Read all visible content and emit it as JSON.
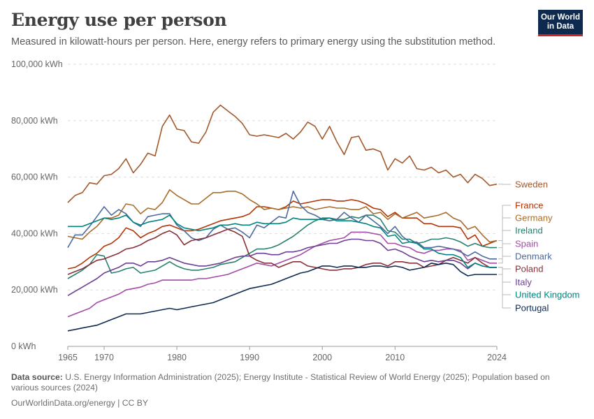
{
  "header": {
    "title": "Energy use per person",
    "subtitle": "Measured in kilowatt-hours per person. Here, energy refers to primary energy using the substitution method.",
    "logo_line1": "Our World",
    "logo_line2": "in Data"
  },
  "footer": {
    "source_label": "Data source:",
    "source_text": "U.S. Energy Information Administration (2025); Energy Institute - Statistical Review of World Energy (2025); Population based on various sources (2024)",
    "credit": "OurWorldinData.org/energy | CC BY"
  },
  "colors": {
    "grid": "#dddddd",
    "axis": "#999999",
    "tick_text": "#666666",
    "brand": "#0f2a4f",
    "brand_accent": "#ce261e"
  },
  "chart_data": {
    "type": "line",
    "ylim": [
      0,
      100000
    ],
    "xlim": [
      1965,
      2024
    ],
    "y_ticks": [
      0,
      20000,
      40000,
      60000,
      80000,
      100000
    ],
    "y_tick_labels": [
      "0 kWh",
      "20,000 kWh",
      "40,000 kWh",
      "60,000 kWh",
      "80,000 kWh",
      "100,000 kWh"
    ],
    "x_ticks": [
      1965,
      1970,
      1980,
      1990,
      2000,
      2010,
      2024
    ],
    "x_tick_labels": [
      "1965",
      "1970",
      "1980",
      "1990",
      "2000",
      "2010",
      "2024"
    ],
    "grid": "horizontal dashed",
    "legend": "right (line-end labels)",
    "x": [
      1965,
      1966,
      1967,
      1968,
      1969,
      1970,
      1971,
      1972,
      1973,
      1974,
      1975,
      1976,
      1977,
      1978,
      1979,
      1980,
      1981,
      1982,
      1983,
      1984,
      1985,
      1986,
      1987,
      1988,
      1989,
      1990,
      1991,
      1992,
      1993,
      1994,
      1995,
      1996,
      1997,
      1998,
      1999,
      2000,
      2001,
      2002,
      2003,
      2004,
      2005,
      2006,
      2007,
      2008,
      2009,
      2010,
      2011,
      2012,
      2013,
      2014,
      2015,
      2016,
      2017,
      2018,
      2019,
      2020,
      2021,
      2022,
      2023,
      2024
    ],
    "series": [
      {
        "name": "Sweden",
        "color": "#a2592b",
        "values": [
          51000,
          53500,
          54500,
          58000,
          57500,
          60500,
          61000,
          63000,
          66500,
          61500,
          64500,
          68500,
          67500,
          78000,
          82000,
          77000,
          76500,
          72500,
          72000,
          76000,
          83000,
          85500,
          83500,
          81500,
          79000,
          75000,
          74500,
          75000,
          74500,
          74000,
          75500,
          73500,
          76000,
          79500,
          78000,
          73500,
          78000,
          72500,
          68000,
          74000,
          74500,
          69500,
          70000,
          69000,
          62500,
          66500,
          65000,
          67500,
          63000,
          62500,
          63500,
          61500,
          62500,
          60000,
          61000,
          58000,
          61000,
          59500,
          57000,
          57500
        ]
      },
      {
        "name": "France",
        "color": "#b13507",
        "values": [
          27500,
          28000,
          29500,
          31500,
          33000,
          35500,
          36500,
          38500,
          42000,
          41000,
          38500,
          40000,
          41000,
          42500,
          43000,
          42000,
          41000,
          41000,
          41500,
          42500,
          43500,
          44500,
          45000,
          45500,
          46000,
          47000,
          49500,
          49500,
          49000,
          48500,
          49500,
          51500,
          50500,
          51000,
          51500,
          52000,
          52000,
          51500,
          51500,
          52000,
          51500,
          50500,
          49000,
          48500,
          46000,
          47500,
          45500,
          45500,
          45500,
          43500,
          43500,
          42500,
          42500,
          42500,
          42000,
          38000,
          39500,
          35500,
          36500,
          37500
        ]
      },
      {
        "name": "Germany",
        "color": "#a76d2b",
        "values": [
          39000,
          38500,
          38000,
          40500,
          42500,
          45500,
          45500,
          46500,
          50500,
          50000,
          47000,
          49000,
          48500,
          51000,
          55500,
          53500,
          52000,
          50500,
          50500,
          52500,
          54500,
          54500,
          55000,
          55000,
          54000,
          52000,
          50500,
          48500,
          49000,
          48500,
          49000,
          49500,
          49000,
          49500,
          48500,
          49000,
          49500,
          49000,
          49000,
          48500,
          48500,
          49500,
          47000,
          47500,
          45000,
          47000,
          45500,
          46500,
          47500,
          45500,
          46000,
          46500,
          47500,
          45500,
          44500,
          41500,
          42500,
          39500,
          37000,
          37500
        ]
      },
      {
        "name": "Ireland",
        "color": "#28806f",
        "values": [
          24000,
          25500,
          27000,
          29000,
          32500,
          32000,
          26000,
          26500,
          27500,
          28000,
          26000,
          26500,
          27000,
          28500,
          30000,
          28500,
          27500,
          27000,
          27000,
          27500,
          28000,
          29000,
          29500,
          30000,
          31500,
          33000,
          34500,
          34500,
          35000,
          36000,
          37500,
          39000,
          41000,
          43000,
          44500,
          45500,
          45500,
          45000,
          45000,
          46000,
          45500,
          46500,
          46500,
          45000,
          41000,
          40500,
          38000,
          38000,
          36500,
          37000,
          38000,
          38000,
          38500,
          38000,
          37000,
          35500,
          36500,
          35500,
          35000,
          35000
        ]
      },
      {
        "name": "Spain",
        "color": "#a14ca6",
        "values": [
          10500,
          11500,
          12500,
          13500,
          15500,
          16500,
          17500,
          18500,
          20000,
          20500,
          21000,
          22000,
          22500,
          23500,
          23500,
          23500,
          23500,
          23500,
          24000,
          24000,
          24500,
          25000,
          25500,
          26500,
          27500,
          28500,
          29500,
          29000,
          28500,
          29500,
          30500,
          31500,
          32500,
          34000,
          35500,
          36500,
          37500,
          38000,
          38500,
          40500,
          40500,
          40500,
          40000,
          39500,
          36500,
          36500,
          35500,
          35000,
          33500,
          33000,
          34000,
          34000,
          34500,
          34500,
          34000,
          30500,
          31500,
          30500,
          29500,
          29500
        ]
      },
      {
        "name": "Denmark",
        "color": "#4c6a9c",
        "values": [
          35000,
          39500,
          39500,
          42500,
          46000,
          49500,
          46500,
          48500,
          47000,
          44000,
          42500,
          46000,
          46500,
          47000,
          47000,
          43000,
          41000,
          38500,
          37500,
          38500,
          41500,
          43000,
          41500,
          42000,
          40500,
          38500,
          43000,
          42000,
          44000,
          46000,
          45500,
          55000,
          50000,
          47500,
          46500,
          45000,
          44500,
          45000,
          47500,
          45500,
          44000,
          46500,
          44500,
          42500,
          40000,
          42500,
          39000,
          37000,
          37000,
          35000,
          35000,
          35500,
          35000,
          34500,
          33500,
          32000,
          33500,
          32000,
          31000,
          31000
        ]
      },
      {
        "name": "Poland",
        "color": "#883039",
        "values": [
          25500,
          26500,
          27500,
          29000,
          30500,
          31000,
          32000,
          33000,
          34500,
          35000,
          36000,
          37500,
          38500,
          40000,
          41000,
          39500,
          36000,
          37500,
          38000,
          38500,
          39500,
          40500,
          41500,
          40500,
          39000,
          32000,
          30500,
          29500,
          29500,
          28000,
          29000,
          30000,
          30000,
          28500,
          28000,
          27500,
          27000,
          27000,
          27500,
          27500,
          28000,
          29000,
          29500,
          29500,
          28500,
          30000,
          30000,
          29500,
          29500,
          28000,
          28500,
          29000,
          30500,
          31500,
          30500,
          29500,
          31500,
          29500,
          28000,
          28000
        ]
      },
      {
        "name": "Italy",
        "color": "#6d3e91",
        "values": [
          18000,
          19500,
          21000,
          22500,
          24000,
          26000,
          27000,
          28000,
          29500,
          29500,
          28500,
          30000,
          30000,
          30500,
          31500,
          30500,
          29500,
          29000,
          28500,
          28500,
          29000,
          29500,
          30500,
          31500,
          32000,
          32000,
          33000,
          33000,
          32500,
          32500,
          33500,
          33500,
          34000,
          35000,
          35500,
          36000,
          36500,
          36500,
          37500,
          38000,
          38000,
          37500,
          37500,
          36500,
          34000,
          34500,
          33500,
          32000,
          31000,
          30000,
          30500,
          30000,
          30500,
          30500,
          29500,
          27500,
          29500,
          28500,
          28000,
          28000
        ]
      },
      {
        "name": "United Kingdom",
        "color": "#00847e",
        "values": [
          42500,
          42500,
          42500,
          43500,
          44500,
          45500,
          45000,
          45500,
          46500,
          44000,
          43000,
          44000,
          44500,
          45000,
          46500,
          43500,
          42000,
          41500,
          41000,
          41500,
          42000,
          43000,
          43000,
          43500,
          43000,
          43000,
          44000,
          43500,
          43500,
          43500,
          44000,
          45500,
          45000,
          45000,
          45000,
          45000,
          45500,
          44500,
          44500,
          44500,
          44000,
          43500,
          42500,
          42000,
          39000,
          39500,
          36500,
          37000,
          36500,
          34500,
          34500,
          33000,
          32500,
          32500,
          31500,
          28000,
          29500,
          28500,
          28000,
          28000
        ]
      },
      {
        "name": "Portugal",
        "color": "#0f2a4f",
        "values": [
          5500,
          6000,
          6500,
          7000,
          7500,
          8500,
          9500,
          10500,
          11500,
          11500,
          11500,
          12000,
          12500,
          13000,
          13500,
          13000,
          13500,
          14000,
          14500,
          15000,
          15500,
          16500,
          17500,
          18500,
          19500,
          20500,
          21000,
          21500,
          22000,
          23000,
          24000,
          25000,
          26000,
          26500,
          27500,
          28500,
          28500,
          28000,
          28500,
          28500,
          28000,
          28000,
          28500,
          28500,
          28000,
          28500,
          28000,
          27000,
          27500,
          28000,
          29500,
          29000,
          29500,
          29000,
          26500,
          25000,
          25500,
          25500,
          25500,
          25500
        ]
      }
    ]
  }
}
